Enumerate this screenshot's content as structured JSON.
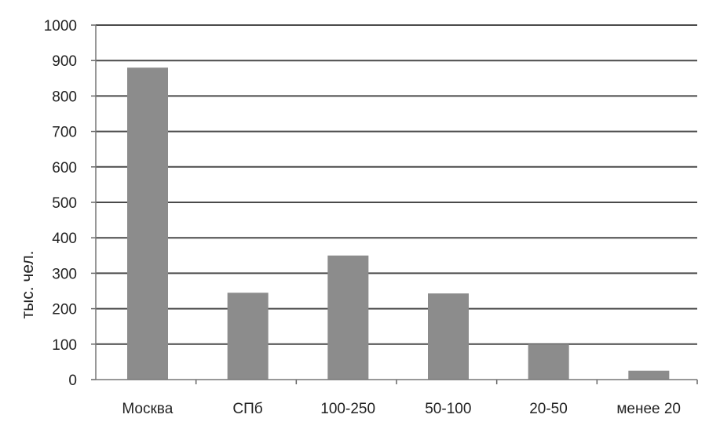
{
  "chart_data": {
    "type": "bar",
    "title": "",
    "xlabel": "",
    "ylabel": "тыс. чел.",
    "categories": [
      "Москва",
      "СПб",
      "100-250",
      "50-100",
      "20-50",
      "менее 20"
    ],
    "values": [
      880,
      245,
      350,
      243,
      100,
      25
    ],
    "ylim": [
      0,
      1000
    ],
    "yticks": [
      0,
      100,
      200,
      300,
      400,
      500,
      600,
      700,
      800,
      900,
      1000
    ],
    "grid": true,
    "legend": "none",
    "bar_color": "#8c8c8c",
    "grid_color": "#4a4a4a"
  }
}
